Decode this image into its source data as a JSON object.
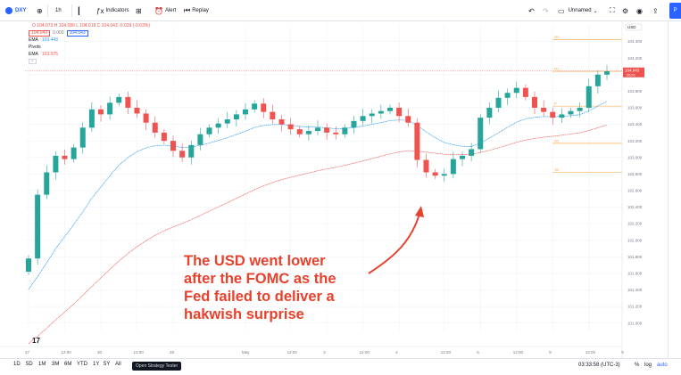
{
  "toolbar": {
    "symbol": "DXY",
    "interval": "1h",
    "indicators_label": "Indicators",
    "alert_label": "Alert",
    "replay_label": "Replay",
    "layout_name": "Unnamed",
    "trade_label": "P"
  },
  "legend": {
    "ohlc": "O 104.073  H 104.089  L 104.018  C 104.043  -0.029 (-0.03%)",
    "bid": "104.043",
    "spread": "0.000",
    "ask": "104.043",
    "ema1_name": "EMA",
    "ema1_value": "103.443",
    "pivots_name": "Pivots",
    "ema2_name": "EMA",
    "ema2_value": "103.075",
    "collapse_glyph": "^"
  },
  "price_axis": {
    "currency_badge": "USD",
    "current_price": "104.043",
    "countdown": "26:01",
    "labels": [
      "104.400",
      "104.200",
      "104.000",
      "103.800",
      "103.600",
      "103.400",
      "103.200",
      "103.000",
      "102.800",
      "102.600",
      "102.400",
      "102.200",
      "102.000",
      "101.800",
      "101.600",
      "101.400",
      "101.200",
      "101.000"
    ]
  },
  "pivots": {
    "r2": "R2",
    "r1": "R1",
    "p": "P",
    "s1": "S1",
    "s2": "S2"
  },
  "time_axis": {
    "labels": [
      {
        "t": "27",
        "i": 0
      },
      {
        "t": "12:00",
        "i": 4
      },
      {
        "t": "30",
        "i": 8
      },
      {
        "t": "12:00",
        "i": 12
      },
      {
        "t": "28",
        "i": 16
      },
      {
        "t": "May",
        "i": 24
      },
      {
        "t": "12:00",
        "i": 29
      },
      {
        "t": "3",
        "i": 33
      },
      {
        "t": "12:00",
        "i": 37
      },
      {
        "t": "4",
        "i": 41
      },
      {
        "t": "12:00",
        "i": 46
      },
      {
        "t": "5",
        "i": 50
      },
      {
        "t": "12:00",
        "i": 54
      },
      {
        "t": "8",
        "i": 58
      },
      {
        "t": "12:00",
        "i": 62
      },
      {
        "t": "9",
        "i": 66
      }
    ]
  },
  "annotation": {
    "lines": [
      "The USD went lower",
      "after the FOMC as the",
      "Fed failed to deliver a",
      "hakwish surprise"
    ]
  },
  "bottom_bar": {
    "ranges": [
      "1D",
      "5D",
      "1M",
      "3M",
      "6M",
      "YTD",
      "1Y",
      "5Y",
      "All"
    ],
    "strategy_tester": "Open Strategy Tester",
    "clock": "03:33:58 (UTC-3)",
    "percent": "%",
    "log": "log",
    "auto": "auto"
  },
  "colors": {
    "up": "#26a69a",
    "down": "#ef5350",
    "ema_fast": "#2196f3",
    "ema_slow": "#ef5350",
    "pivot_level": "#f0a030",
    "annotation": "#e8412c",
    "accent": "#2962ff"
  },
  "chart_data": {
    "type": "candlestick",
    "symbol": "DXY",
    "interval": "1h",
    "ylim": [
      100.9,
      104.6
    ],
    "candles_approx_close": [
      101.78,
      102.55,
      102.82,
      103.02,
      102.98,
      103.12,
      103.36,
      103.58,
      103.52,
      103.66,
      103.73,
      103.6,
      103.53,
      103.42,
      103.3,
      103.2,
      103.08,
      103.0,
      103.15,
      103.28,
      103.36,
      103.41,
      103.46,
      103.52,
      103.58,
      103.65,
      103.55,
      103.46,
      103.4,
      103.34,
      103.28,
      103.32,
      103.36,
      103.3,
      103.28,
      103.36,
      103.44,
      103.5,
      103.53,
      103.56,
      103.6,
      103.5,
      103.42,
      102.97,
      102.82,
      102.78,
      102.8,
      102.98,
      103.02,
      103.1,
      103.48,
      103.6,
      103.72,
      103.78,
      103.84,
      103.73,
      103.6,
      103.55,
      103.48,
      103.52,
      103.56,
      103.6,
      103.86,
      104.0,
      104.04
    ],
    "pivot_levels": {
      "R2": 104.42,
      "R1": 104.04,
      "P": 103.62,
      "S1": 103.17,
      "S2": 102.82
    },
    "series": [
      {
        "name": "EMA",
        "value_last": 103.443
      },
      {
        "name": "EMA",
        "value_last": 103.075
      }
    ]
  }
}
